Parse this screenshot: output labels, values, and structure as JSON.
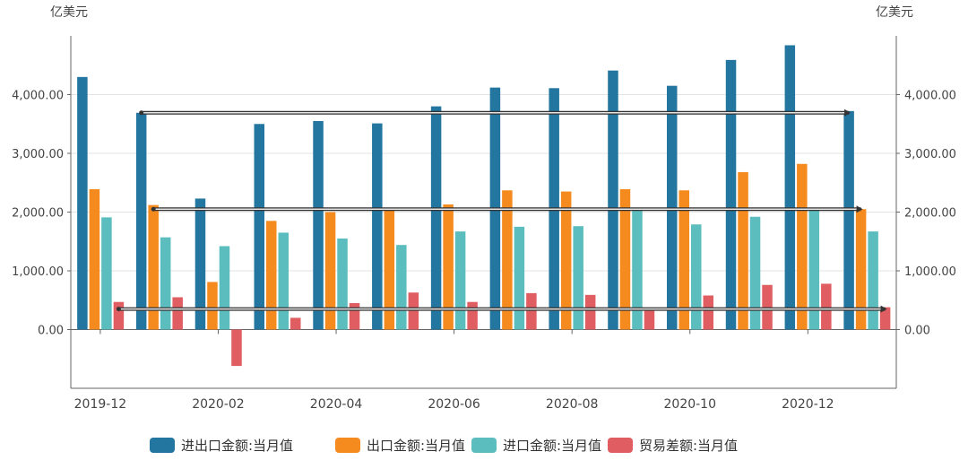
{
  "chart_data": {
    "type": "bar",
    "y_unit_left": "亿美元",
    "y_unit_right": "亿美元",
    "ylim": [
      -1000,
      5000
    ],
    "y_ticks": [
      0,
      1000,
      2000,
      3000,
      4000
    ],
    "y_tick_labels": [
      "0.00",
      "1,000.00",
      "2,000.00",
      "3,000.00",
      "4,000.00"
    ],
    "categories": [
      "2019-12",
      "2020-01",
      "2020-02",
      "2020-03",
      "2020-04",
      "2020-05",
      "2020-06",
      "2020-07",
      "2020-08",
      "2020-09",
      "2020-10",
      "2020-11",
      "2020-12",
      "2021-01"
    ],
    "x_tick_labels": [
      "2019-12",
      "2020-02",
      "2020-04",
      "2020-06",
      "2020-08",
      "2020-10",
      "2020-12"
    ],
    "x_tick_label_indices": [
      0,
      2,
      4,
      6,
      8,
      10,
      12
    ],
    "series": [
      {
        "name": "进出口金额:当月值",
        "color": "#23769f",
        "values": [
          4300,
          3690,
          2230,
          3500,
          3550,
          3510,
          3800,
          4120,
          4110,
          4410,
          4150,
          4590,
          4840,
          3720
        ]
      },
      {
        "name": "出口金额:当月值",
        "color": "#f58a1f",
        "values": [
          2390,
          2120,
          810,
          1850,
          2000,
          2070,
          2130,
          2370,
          2350,
          2390,
          2370,
          2680,
          2820,
          2050
        ]
      },
      {
        "name": "进口金额:当月值",
        "color": "#5cbdbe",
        "values": [
          1910,
          1570,
          1420,
          1650,
          1550,
          1440,
          1670,
          1750,
          1760,
          2030,
          1790,
          1920,
          2040,
          1670
        ]
      },
      {
        "name": "贸易差额:当月值",
        "color": "#e05d61",
        "values": [
          470,
          550,
          -620,
          200,
          450,
          630,
          470,
          620,
          590,
          370,
          580,
          760,
          780,
          380
        ]
      }
    ],
    "reference_lines": [
      {
        "start_index": 1,
        "end_index": 13,
        "value": 3690,
        "series_index": 0
      },
      {
        "start_index": 1,
        "end_index": 13,
        "value": 2050,
        "series_index": 1
      },
      {
        "start_index": 0,
        "end_index": 13,
        "value": 350,
        "series_index": 3
      }
    ],
    "legend_position": "bottom-center",
    "grid": true
  }
}
